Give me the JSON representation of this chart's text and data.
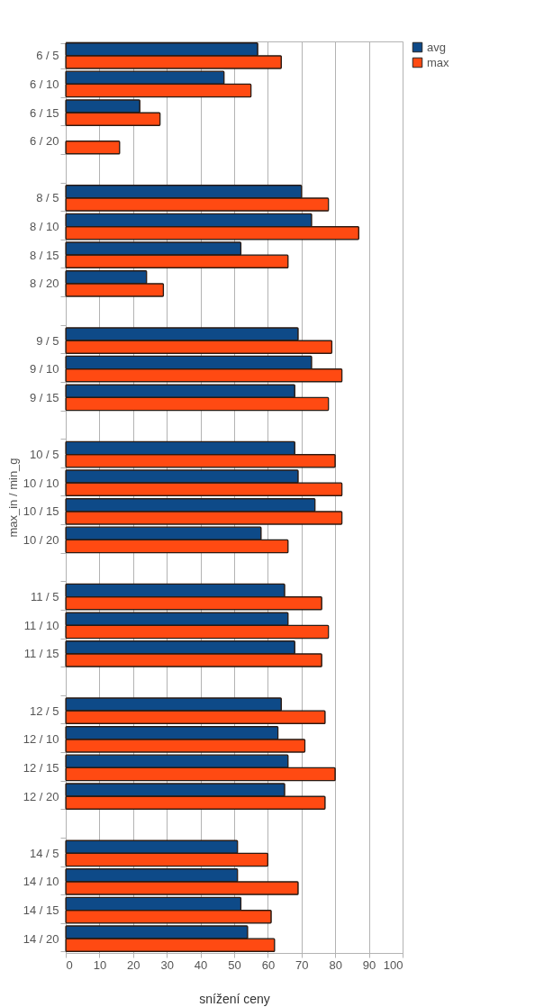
{
  "chart_data": {
    "type": "bar",
    "orientation": "horizontal",
    "xlabel": "snížení ceny",
    "ylabel": "max_in / min_g",
    "categories": [
      "6 / 5",
      "6 / 10",
      "6 / 15",
      "6 / 20",
      null,
      "8 / 5",
      "8 / 10",
      "8 / 15",
      "8 / 20",
      null,
      "9 / 5",
      "9 / 10",
      "9 / 15",
      null,
      "10 / 5",
      "10 / 10",
      "10 / 15",
      "10 / 20",
      null,
      "11 / 5",
      "11 / 10",
      "11 / 15",
      null,
      "12 / 5",
      "12 / 10",
      "12 / 15",
      "12 / 20",
      null,
      "14 / 5",
      "14 / 10",
      "14 / 15",
      "14 / 20"
    ],
    "series": [
      {
        "name": "avg",
        "color": "#0e4a88",
        "values": [
          57,
          47,
          22,
          null,
          null,
          70,
          73,
          52,
          24,
          null,
          69,
          73,
          68,
          null,
          68,
          69,
          74,
          58,
          null,
          65,
          66,
          68,
          null,
          64,
          63,
          66,
          65,
          null,
          51,
          51,
          52,
          54
        ]
      },
      {
        "name": "max",
        "color": "#ff4a12",
        "values": [
          64,
          55,
          28,
          16,
          null,
          78,
          87,
          66,
          29,
          null,
          79,
          82,
          78,
          null,
          80,
          82,
          82,
          66,
          null,
          76,
          78,
          76,
          null,
          77,
          71,
          80,
          77,
          null,
          60,
          69,
          61,
          62
        ]
      }
    ],
    "xlim": [
      0,
      100
    ],
    "xticks": [
      0,
      10,
      20,
      30,
      40,
      50,
      60,
      70,
      80,
      90,
      100
    ],
    "grid": "x",
    "legend": "right"
  }
}
